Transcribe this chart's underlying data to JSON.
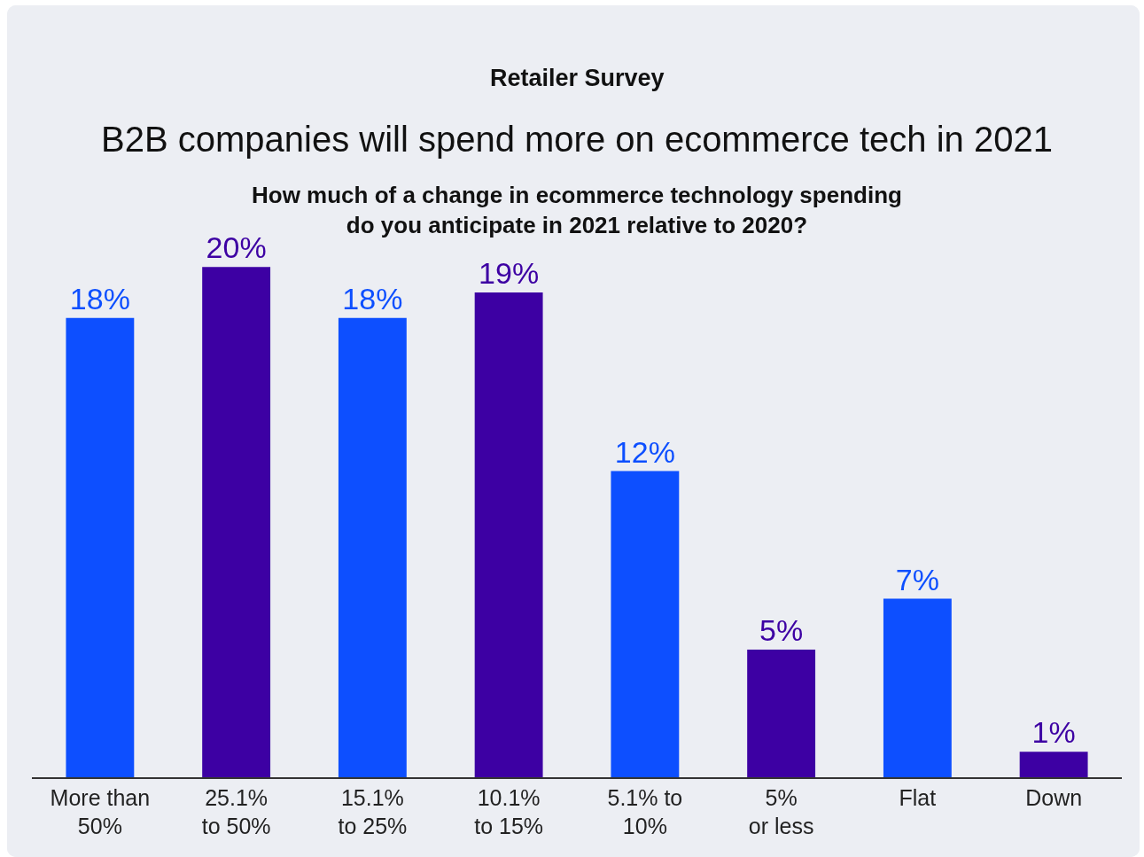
{
  "chart_data": {
    "type": "bar",
    "title": "Retailer Survey",
    "subtitle": "B2B companies will spend more on ecommerce tech in 2021",
    "annotations": [
      "How much of a change in ecommerce technology spending\ndo you anticipate in 2021 relative to 2020?"
    ],
    "categories": [
      "More than\n50%",
      "25.1%\nto 50%",
      "15.1%\nto 25%",
      "10.1%\nto 15%",
      "5.1% to\n10%",
      "5%\nor less",
      "Flat",
      "Down"
    ],
    "values": [
      18,
      20,
      18,
      19,
      12,
      5,
      7,
      1
    ],
    "colors": [
      "#0d4fff",
      "#3d00a3",
      "#0d4fff",
      "#3d00a3",
      "#0d4fff",
      "#3d00a3",
      "#0d4fff",
      "#3d00a3"
    ],
    "value_labels": [
      "18%",
      "20%",
      "18%",
      "19%",
      "12%",
      "5%",
      "7%",
      "1%"
    ]
  }
}
